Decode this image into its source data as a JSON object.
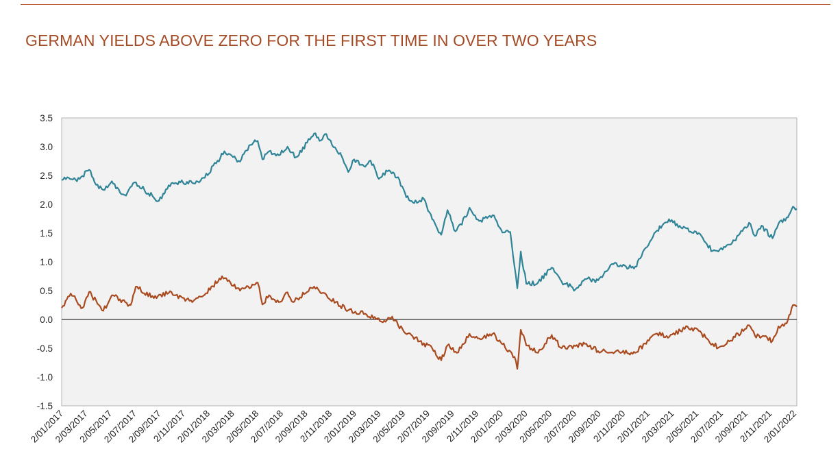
{
  "header": {
    "title": "GERMAN YIELDS ABOVE ZERO FOR THE FIRST TIME IN OVER TWO YEARS"
  },
  "colors": {
    "accent": "#b5532a",
    "title": "#a44a24",
    "series_us": "#2f8497",
    "series_de": "#a94a1f",
    "plot_bg": "#f2f2f2"
  },
  "chart_data": {
    "type": "line",
    "title": "GERMAN YIELDS ABOVE ZERO FOR THE FIRST TIME IN OVER TWO YEARS",
    "xlabel": "",
    "ylabel": "",
    "ylim": [
      -1.5,
      3.5
    ],
    "yticks": [
      "3.5",
      "3.0",
      "2.5",
      "2.0",
      "1.5",
      "1.0",
      "0.5",
      "0.0",
      "-0.5",
      "-1.0",
      "-1.5"
    ],
    "x_tick_labels": [
      "2/01/2017",
      "2/03/2017",
      "2/05/2017",
      "2/07/2017",
      "2/09/2017",
      "2/11/2017",
      "2/01/2018",
      "2/03/2018",
      "2/05/2018",
      "2/07/2018",
      "2/09/2018",
      "2/11/2018",
      "2/01/2019",
      "2/03/2019",
      "2/05/2019",
      "2/07/2019",
      "2/09/2019",
      "2/11/2019",
      "2/01/2020",
      "2/03/2020",
      "2/05/2020",
      "2/07/2020",
      "2/09/2020",
      "2/11/2020",
      "2/01/2021",
      "2/03/2021",
      "2/05/2021",
      "2/07/2021",
      "2/09/2021",
      "2/11/2021",
      "2/01/2022"
    ],
    "x_range": [
      "2017-01-02",
      "2022-02-20"
    ],
    "grid": false,
    "legend": "none",
    "series": [
      {
        "color": "#2f8497",
        "points": [
          [
            "2017-01-02",
            2.42
          ],
          [
            "2017-01-20",
            2.46
          ],
          [
            "2017-02-10",
            2.4
          ],
          [
            "2017-03-13",
            2.6
          ],
          [
            "2017-03-27",
            2.38
          ],
          [
            "2017-04-18",
            2.25
          ],
          [
            "2017-05-10",
            2.4
          ],
          [
            "2017-05-31",
            2.2
          ],
          [
            "2017-06-15",
            2.15
          ],
          [
            "2017-07-07",
            2.38
          ],
          [
            "2017-08-01",
            2.25
          ],
          [
            "2017-09-07",
            2.06
          ],
          [
            "2017-10-02",
            2.33
          ],
          [
            "2017-11-01",
            2.38
          ],
          [
            "2017-12-01",
            2.37
          ],
          [
            "2018-01-02",
            2.46
          ],
          [
            "2018-01-31",
            2.71
          ],
          [
            "2018-02-21",
            2.92
          ],
          [
            "2018-03-15",
            2.82
          ],
          [
            "2018-04-02",
            2.74
          ],
          [
            "2018-04-25",
            3.02
          ],
          [
            "2018-05-17",
            3.1
          ],
          [
            "2018-05-29",
            2.78
          ],
          [
            "2018-06-15",
            2.92
          ],
          [
            "2018-07-10",
            2.85
          ],
          [
            "2018-08-01",
            3.0
          ],
          [
            "2018-08-23",
            2.82
          ],
          [
            "2018-09-20",
            3.07
          ],
          [
            "2018-10-08",
            3.23
          ],
          [
            "2018-10-25",
            3.11
          ],
          [
            "2018-11-08",
            3.22
          ],
          [
            "2018-11-30",
            2.99
          ],
          [
            "2018-12-20",
            2.79
          ],
          [
            "2019-01-03",
            2.56
          ],
          [
            "2019-01-18",
            2.78
          ],
          [
            "2019-02-15",
            2.65
          ],
          [
            "2019-03-01",
            2.76
          ],
          [
            "2019-03-22",
            2.44
          ],
          [
            "2019-04-17",
            2.59
          ],
          [
            "2019-05-10",
            2.47
          ],
          [
            "2019-05-31",
            2.12
          ],
          [
            "2019-06-20",
            2.02
          ],
          [
            "2019-07-15",
            2.09
          ],
          [
            "2019-08-05",
            1.74
          ],
          [
            "2019-08-28",
            1.47
          ],
          [
            "2019-09-13",
            1.9
          ],
          [
            "2019-10-03",
            1.53
          ],
          [
            "2019-10-30",
            1.78
          ],
          [
            "2019-11-08",
            1.94
          ],
          [
            "2019-12-03",
            1.71
          ],
          [
            "2020-01-06",
            1.81
          ],
          [
            "2020-01-31",
            1.51
          ],
          [
            "2020-02-20",
            1.52
          ],
          [
            "2020-03-09",
            0.54
          ],
          [
            "2020-03-18",
            1.18
          ],
          [
            "2020-04-01",
            0.62
          ],
          [
            "2020-05-01",
            0.64
          ],
          [
            "2020-06-05",
            0.9
          ],
          [
            "2020-06-30",
            0.66
          ],
          [
            "2020-08-04",
            0.52
          ],
          [
            "2020-09-01",
            0.7
          ],
          [
            "2020-10-01",
            0.68
          ],
          [
            "2020-11-09",
            0.96
          ],
          [
            "2020-12-01",
            0.92
          ],
          [
            "2021-01-04",
            0.92
          ],
          [
            "2021-01-20",
            1.1
          ],
          [
            "2021-02-25",
            1.52
          ],
          [
            "2021-03-31",
            1.74
          ],
          [
            "2021-05-04",
            1.58
          ],
          [
            "2021-06-15",
            1.5
          ],
          [
            "2021-07-20",
            1.19
          ],
          [
            "2021-08-04",
            1.18
          ],
          [
            "2021-09-01",
            1.3
          ],
          [
            "2021-09-24",
            1.46
          ],
          [
            "2021-10-21",
            1.68
          ],
          [
            "2021-11-05",
            1.45
          ],
          [
            "2021-11-22",
            1.63
          ],
          [
            "2021-12-20",
            1.41
          ],
          [
            "2022-01-04",
            1.66
          ],
          [
            "2022-01-25",
            1.77
          ],
          [
            "2022-02-10",
            1.96
          ],
          [
            "2022-02-20",
            1.92
          ]
        ]
      },
      {
        "color": "#a94a1f",
        "points": [
          [
            "2017-01-02",
            0.2
          ],
          [
            "2017-01-25",
            0.45
          ],
          [
            "2017-02-24",
            0.2
          ],
          [
            "2017-03-13",
            0.48
          ],
          [
            "2017-04-18",
            0.15
          ],
          [
            "2017-05-10",
            0.42
          ],
          [
            "2017-06-27",
            0.25
          ],
          [
            "2017-07-10",
            0.57
          ],
          [
            "2017-08-25",
            0.37
          ],
          [
            "2017-10-02",
            0.46
          ],
          [
            "2017-12-01",
            0.3
          ],
          [
            "2018-01-02",
            0.43
          ],
          [
            "2018-02-15",
            0.75
          ],
          [
            "2018-04-02",
            0.5
          ],
          [
            "2018-05-17",
            0.64
          ],
          [
            "2018-05-29",
            0.26
          ],
          [
            "2018-06-15",
            0.42
          ],
          [
            "2018-07-10",
            0.3
          ],
          [
            "2018-08-01",
            0.47
          ],
          [
            "2018-08-15",
            0.3
          ],
          [
            "2018-10-08",
            0.57
          ],
          [
            "2018-11-15",
            0.36
          ],
          [
            "2019-01-03",
            0.16
          ],
          [
            "2019-02-15",
            0.1
          ],
          [
            "2019-04-01",
            -0.05
          ],
          [
            "2019-04-25",
            0.05
          ],
          [
            "2019-05-10",
            -0.1
          ],
          [
            "2019-06-05",
            -0.24
          ],
          [
            "2019-07-04",
            -0.38
          ],
          [
            "2019-08-05",
            -0.5
          ],
          [
            "2019-08-28",
            -0.71
          ],
          [
            "2019-09-13",
            -0.45
          ],
          [
            "2019-10-07",
            -0.58
          ],
          [
            "2019-11-08",
            -0.25
          ],
          [
            "2019-12-03",
            -0.33
          ],
          [
            "2020-01-06",
            -0.25
          ],
          [
            "2020-01-31",
            -0.43
          ],
          [
            "2020-03-02",
            -0.65
          ],
          [
            "2020-03-09",
            -0.86
          ],
          [
            "2020-03-18",
            -0.18
          ],
          [
            "2020-04-01",
            -0.45
          ],
          [
            "2020-05-01",
            -0.58
          ],
          [
            "2020-06-05",
            -0.27
          ],
          [
            "2020-06-30",
            -0.5
          ],
          [
            "2020-09-01",
            -0.42
          ],
          [
            "2020-10-01",
            -0.55
          ],
          [
            "2020-12-01",
            -0.57
          ],
          [
            "2021-01-04",
            -0.58
          ],
          [
            "2021-02-25",
            -0.25
          ],
          [
            "2021-04-01",
            -0.3
          ],
          [
            "2021-05-17",
            -0.12
          ],
          [
            "2021-06-15",
            -0.2
          ],
          [
            "2021-07-20",
            -0.42
          ],
          [
            "2021-08-04",
            -0.49
          ],
          [
            "2021-09-01",
            -0.38
          ],
          [
            "2021-10-21",
            -0.1
          ],
          [
            "2021-11-05",
            -0.28
          ],
          [
            "2021-11-22",
            -0.3
          ],
          [
            "2021-12-20",
            -0.37
          ],
          [
            "2022-01-04",
            -0.12
          ],
          [
            "2022-01-25",
            -0.07
          ],
          [
            "2022-02-10",
            0.25
          ],
          [
            "2022-02-20",
            0.22
          ]
        ]
      }
    ]
  }
}
